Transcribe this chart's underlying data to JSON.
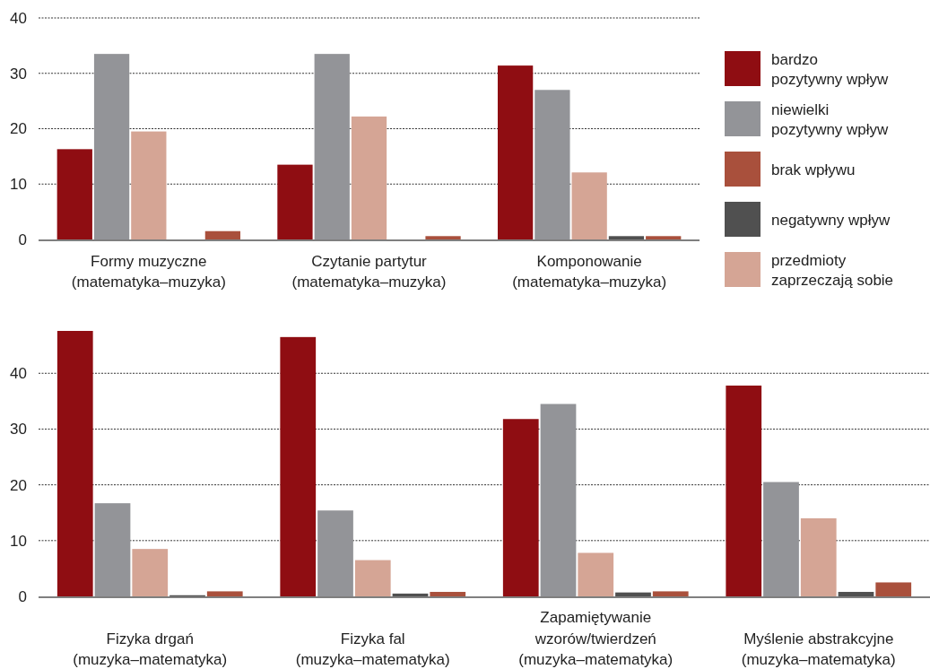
{
  "chart_data": [
    {
      "type": "bar",
      "categories": [
        "Formy muzyczne\n(matematyka–muzyka)",
        "Czytanie partytur\n(matematyka–muzyka)",
        "Komponowanie\n(matematyka–muzyka)"
      ],
      "series": [
        {
          "name": "bardzo\npozytywny wpływ",
          "color": "#8f0d12",
          "values": [
            16.3,
            13.5,
            31.4
          ]
        },
        {
          "name": "niewielki\npozytywny wpływ",
          "color": "#939498",
          "values": [
            33.5,
            33.5,
            27.0
          ]
        },
        {
          "name": "brak wpływu",
          "color": "#a9503c",
          "values": [
            1.5,
            0.6,
            0.6
          ]
        },
        {
          "name": "negatywny wpływ",
          "color": "#505050",
          "values": [
            0,
            0,
            0.6
          ]
        },
        {
          "name": "przedmioty\nzaprzeczają sobie",
          "color": "#d5a595",
          "values": [
            19.5,
            22.2,
            12.1
          ]
        }
      ],
      "ylim": [
        0,
        40
      ],
      "yticks": [
        0,
        10,
        20,
        30,
        40
      ],
      "grid": "y",
      "legend": "right"
    },
    {
      "type": "bar",
      "categories": [
        "Fizyka drgań\n(muzyka–matematyka)",
        "Fizyka fal\n(muzyka–matematyka)",
        "Zapamiętywanie\nwzorów/twierdzeń\n(muzyka–matematyka)",
        "Myślenie abstrakcyjne\n(muzyka–matematyka)"
      ],
      "series": [
        {
          "color": "#8f0d12",
          "values": [
            47.6,
            46.5,
            31.8,
            37.8
          ]
        },
        {
          "color": "#939498",
          "values": [
            16.7,
            15.4,
            34.5,
            20.5
          ]
        },
        {
          "color": "#a9503c",
          "values": [
            0.9,
            0.8,
            0.9,
            2.5
          ]
        },
        {
          "color": "#505050",
          "values": [
            0.2,
            0.5,
            0.7,
            0.8
          ]
        },
        {
          "color": "#d5a595",
          "values": [
            8.5,
            6.5,
            7.8,
            14.0
          ]
        }
      ],
      "ylim": [
        0,
        47.6
      ],
      "yticks": [
        0,
        10,
        20,
        30,
        40
      ],
      "grid": "y",
      "legend": false
    }
  ]
}
